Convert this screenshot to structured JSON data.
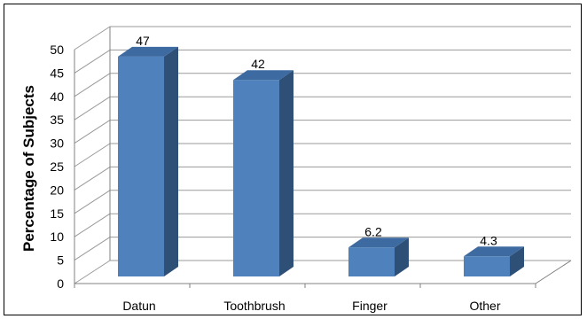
{
  "chart_data": {
    "type": "bar",
    "style": "3d-column",
    "categories": [
      "Datun",
      "Toothbrush",
      "Finger",
      "Other"
    ],
    "values": [
      47,
      42,
      6.2,
      4.3
    ],
    "data_labels": [
      "47",
      "42",
      "6.2",
      "4.3"
    ],
    "ylabel": "Percentage of Subjects",
    "ylim": [
      0,
      50
    ],
    "yticks": [
      0,
      5,
      10,
      15,
      20,
      25,
      30,
      35,
      40,
      45,
      50
    ],
    "grid": true,
    "legend": "none",
    "colors": {
      "bar_front": "#4F81BD",
      "bar_side": "#2E4F76",
      "bar_top": "#3D6AA0",
      "grid": "#9a9a9a",
      "axis": "#808080"
    }
  }
}
